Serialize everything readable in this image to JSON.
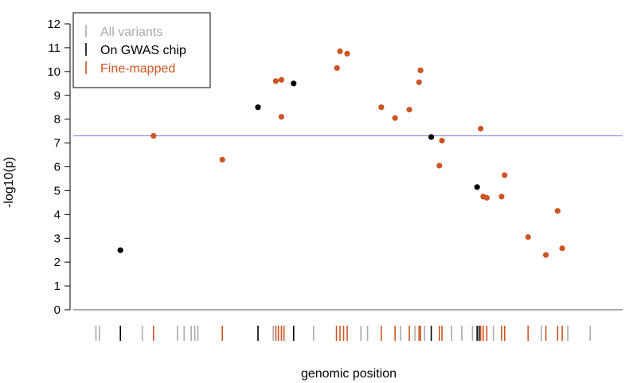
{
  "chart_data": {
    "type": "scatter",
    "title": "",
    "xlabel": "genomic position",
    "ylabel": "-log10(p)",
    "ylim": [
      0,
      12
    ],
    "yticks": [
      0,
      1,
      2,
      3,
      4,
      5,
      6,
      7,
      8,
      9,
      10,
      11,
      12
    ],
    "xlim": [
      0,
      100
    ],
    "threshold": {
      "value": 7.3,
      "color": "#8080e6"
    },
    "legend": {
      "placement": "top-left",
      "entries": [
        {
          "label": "All variants",
          "color": "#aaaaaa"
        },
        {
          "label": "On GWAS chip",
          "color": "#000000"
        },
        {
          "label": "Fine-mapped",
          "color": "#cc5522"
        }
      ]
    },
    "series": [
      {
        "name": "On GWAS chip",
        "color": "#000000",
        "points": [
          {
            "x": 10.5,
            "y": 2.5
          },
          {
            "x": 37.5,
            "y": 8.5
          },
          {
            "x": 44.5,
            "y": 9.5
          },
          {
            "x": 71.5,
            "y": 7.25
          },
          {
            "x": 80.5,
            "y": 5.15
          }
        ]
      },
      {
        "name": "Fine-mapped",
        "color": "#cc5522",
        "points": [
          {
            "x": 17.0,
            "y": 7.3
          },
          {
            "x": 30.5,
            "y": 6.3
          },
          {
            "x": 41.0,
            "y": 9.6
          },
          {
            "x": 42.1,
            "y": 9.65
          },
          {
            "x": 42.1,
            "y": 8.1
          },
          {
            "x": 53.0,
            "y": 10.15
          },
          {
            "x": 53.6,
            "y": 10.85
          },
          {
            "x": 55.0,
            "y": 10.75
          },
          {
            "x": 61.7,
            "y": 8.5
          },
          {
            "x": 64.4,
            "y": 8.05
          },
          {
            "x": 67.2,
            "y": 8.4
          },
          {
            "x": 69.1,
            "y": 9.55
          },
          {
            "x": 69.4,
            "y": 10.05
          },
          {
            "x": 73.1,
            "y": 6.05
          },
          {
            "x": 73.6,
            "y": 7.1
          },
          {
            "x": 81.2,
            "y": 7.6
          },
          {
            "x": 81.7,
            "y": 4.75
          },
          {
            "x": 82.4,
            "y": 4.7
          },
          {
            "x": 85.3,
            "y": 4.75
          },
          {
            "x": 85.9,
            "y": 5.65
          },
          {
            "x": 90.5,
            "y": 3.05
          },
          {
            "x": 94.0,
            "y": 2.3
          },
          {
            "x": 96.3,
            "y": 4.15
          },
          {
            "x": 97.2,
            "y": 2.58
          }
        ]
      }
    ],
    "rug": [
      {
        "x": 5.7,
        "kind": "all"
      },
      {
        "x": 6.4,
        "kind": "all"
      },
      {
        "x": 10.5,
        "kind": "chip"
      },
      {
        "x": 14.8,
        "kind": "all"
      },
      {
        "x": 17.0,
        "kind": "fine"
      },
      {
        "x": 21.7,
        "kind": "all"
      },
      {
        "x": 23.0,
        "kind": "all"
      },
      {
        "x": 24.4,
        "kind": "all"
      },
      {
        "x": 25.1,
        "kind": "all"
      },
      {
        "x": 25.7,
        "kind": "all"
      },
      {
        "x": 30.5,
        "kind": "fine"
      },
      {
        "x": 37.5,
        "kind": "chip"
      },
      {
        "x": 40.5,
        "kind": "all"
      },
      {
        "x": 41.0,
        "kind": "fine"
      },
      {
        "x": 41.5,
        "kind": "fine"
      },
      {
        "x": 42.1,
        "kind": "fine"
      },
      {
        "x": 42.6,
        "kind": "fine"
      },
      {
        "x": 44.5,
        "kind": "chip"
      },
      {
        "x": 48.4,
        "kind": "all"
      },
      {
        "x": 52.9,
        "kind": "fine"
      },
      {
        "x": 53.6,
        "kind": "fine"
      },
      {
        "x": 54.3,
        "kind": "fine"
      },
      {
        "x": 55.0,
        "kind": "fine"
      },
      {
        "x": 57.7,
        "kind": "all"
      },
      {
        "x": 59.0,
        "kind": "all"
      },
      {
        "x": 61.7,
        "kind": "fine"
      },
      {
        "x": 64.4,
        "kind": "fine"
      },
      {
        "x": 65.5,
        "kind": "all"
      },
      {
        "x": 67.2,
        "kind": "fine"
      },
      {
        "x": 68.3,
        "kind": "all"
      },
      {
        "x": 69.1,
        "kind": "fine"
      },
      {
        "x": 69.4,
        "kind": "fine"
      },
      {
        "x": 70.2,
        "kind": "all"
      },
      {
        "x": 71.5,
        "kind": "chip"
      },
      {
        "x": 73.1,
        "kind": "fine"
      },
      {
        "x": 73.6,
        "kind": "fine"
      },
      {
        "x": 75.5,
        "kind": "all"
      },
      {
        "x": 77.5,
        "kind": "all"
      },
      {
        "x": 79.6,
        "kind": "all"
      },
      {
        "x": 80.5,
        "kind": "chip"
      },
      {
        "x": 80.9,
        "kind": "chip"
      },
      {
        "x": 81.2,
        "kind": "fine"
      },
      {
        "x": 81.7,
        "kind": "fine"
      },
      {
        "x": 82.4,
        "kind": "fine"
      },
      {
        "x": 83.7,
        "kind": "all"
      },
      {
        "x": 85.3,
        "kind": "fine"
      },
      {
        "x": 85.9,
        "kind": "fine"
      },
      {
        "x": 90.5,
        "kind": "fine"
      },
      {
        "x": 93.1,
        "kind": "all"
      },
      {
        "x": 94.0,
        "kind": "fine"
      },
      {
        "x": 96.3,
        "kind": "fine"
      },
      {
        "x": 97.2,
        "kind": "fine"
      },
      {
        "x": 98.3,
        "kind": "all"
      },
      {
        "x": 102.7,
        "kind": "all"
      }
    ]
  }
}
